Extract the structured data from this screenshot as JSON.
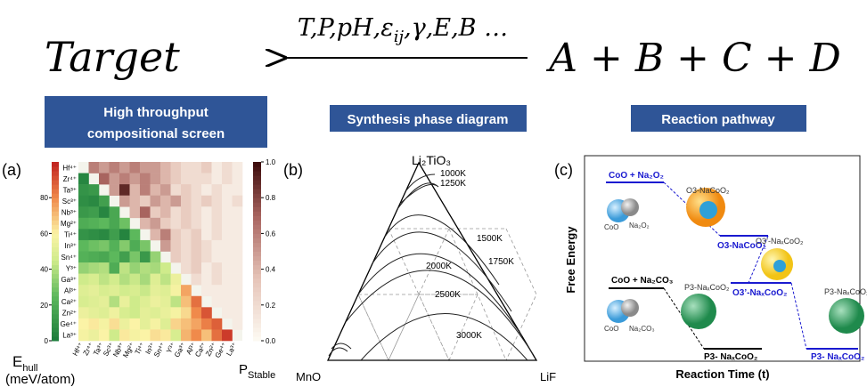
{
  "header": {
    "target": "Target",
    "conditions": {
      "before": "T,P,pH,ε",
      "subscript": "ij",
      "after": ",γ,E,B …"
    },
    "precursors": "A + B + C + D"
  },
  "sections": [
    [
      "High throughput",
      "compositional screen"
    ],
    [
      "Synthesis phase diagram"
    ],
    [
      "Reaction pathway"
    ]
  ],
  "panel_a": {
    "label": "(a)",
    "ions": [
      "Hf⁴⁺",
      "Zr⁴⁺",
      "Ta³⁺",
      "Sc³⁺",
      "Nb³⁺",
      "Mg²⁺",
      "Ti⁴⁺",
      "In³⁺",
      "Sn⁴⁺",
      "Y³⁺",
      "Ga³⁺",
      "Al³⁺",
      "Ca²⁺",
      "Zn²⁺",
      "Ge⁴⁺",
      "La³⁺"
    ],
    "ehull": {
      "symbol": "E",
      "subscript": "hull",
      "unit": "(meV/atom)",
      "lim": [
        0,
        100
      ],
      "ticks": [
        0,
        20,
        40,
        60,
        80
      ],
      "rows": [
        [
          5
        ],
        [
          10,
          12
        ],
        [
          8,
          6,
          15
        ],
        [
          12,
          14,
          5,
          18
        ],
        [
          20,
          22,
          25,
          18,
          28
        ],
        [
          10,
          8,
          6,
          14,
          4,
          25
        ],
        [
          25,
          28,
          30,
          22,
          32,
          20,
          30
        ],
        [
          22,
          20,
          18,
          25,
          15,
          30,
          12,
          35
        ],
        [
          35,
          38,
          40,
          20,
          42,
          35,
          40,
          38,
          45
        ],
        [
          45,
          48,
          42,
          46,
          40,
          44,
          38,
          50,
          42,
          55
        ],
        [
          50,
          52,
          48,
          50,
          46,
          48,
          44,
          52,
          50,
          58,
          75
        ],
        [
          48,
          50,
          52,
          40,
          54,
          45,
          50,
          55,
          52,
          42,
          70,
          85
        ],
        [
          55,
          52,
          50,
          56,
          48,
          45,
          52,
          50,
          54,
          58,
          65,
          80,
          90
        ],
        [
          60,
          62,
          58,
          64,
          55,
          60,
          52,
          58,
          50,
          66,
          70,
          75,
          82,
          88
        ],
        [
          58,
          55,
          60,
          45,
          62,
          58,
          60,
          64,
          62,
          48,
          72,
          80,
          70,
          85,
          95
        ]
      ]
    },
    "pstable": {
      "symbol": "P",
      "subscript": "Stable",
      "lim": [
        0,
        1
      ],
      "ticks": [
        {
          "value": 0,
          "label": "0.0"
        },
        {
          "value": 0.2,
          "label": "0.2"
        },
        {
          "value": 0.4,
          "label": "0.4"
        },
        {
          "value": 0.6,
          "label": "0.6"
        },
        {
          "value": 0.8,
          "label": "0.8"
        },
        {
          "value": 1,
          "label": "1.0"
        }
      ],
      "rows": [
        [
          0.6,
          0.5,
          0.6,
          0.5,
          0.6,
          0.5,
          0.5,
          0.4,
          0.3,
          0.2,
          0.2,
          0.3,
          0.1,
          0.2,
          0.1
        ],
        [
          0.7,
          0.5,
          0.6,
          0.5,
          0.6,
          0.5,
          0.4,
          0.3,
          0.2,
          0.2,
          0.2,
          0.1,
          0.2,
          0.1
        ],
        [
          0.5,
          0.9,
          0.4,
          0.6,
          0.4,
          0.5,
          0.2,
          0.3,
          0.2,
          0.1,
          0.2,
          0.1,
          0.1
        ],
        [
          0.5,
          0.4,
          0.3,
          0.5,
          0.4,
          0.5,
          0.3,
          0.2,
          0.3,
          0.2,
          0.1,
          0.2
        ],
        [
          0.4,
          0.7,
          0.3,
          0.4,
          0.2,
          0.3,
          0.2,
          0.1,
          0.2,
          0.1,
          0.1
        ],
        [
          0.4,
          0.5,
          0.3,
          0.2,
          0.3,
          0.2,
          0.1,
          0.2,
          0.1,
          0.1
        ],
        [
          0.4,
          0.6,
          0.3,
          0.2,
          0.3,
          0.1,
          0.2,
          0.1,
          0.1
        ],
        [
          0.5,
          0.3,
          0.2,
          0.3,
          0.2,
          0.1,
          0.1,
          0.1
        ],
        [
          0.3,
          0.2,
          0.3,
          0.2,
          0.1,
          0.1,
          0.1
        ],
        [
          0.2,
          0.3,
          0.1,
          0.2,
          0.1,
          0.1
        ],
        [
          0.2,
          0.1,
          0.2,
          0.1,
          0.1
        ],
        [
          0.1,
          0.1,
          0.1,
          0.1
        ],
        [
          0.1,
          0.1,
          0.1
        ],
        [
          0.1,
          0.1
        ],
        [
          0.1
        ]
      ]
    }
  },
  "panel_b": {
    "label": "(b)",
    "top": "Li₂TiO₃",
    "left": "MnO",
    "right": "LiF",
    "temperatures": [
      "1000K",
      "1250K",
      "1500K",
      "1750K",
      "2000K",
      "2500K",
      "3000K"
    ]
  },
  "panel_c": {
    "label": "(c)",
    "y_axis": "Free Energy",
    "x_axis": "Reaction Time (t)",
    "states": [
      "CoO + Na₂O₂",
      "O3-NaCoO₂",
      "O3’-NaₓCoO₂",
      "P3- NaₓCoO₂",
      "CoO + Na₂CO₃",
      "P3- NaₓCoO₂"
    ],
    "particles": [
      "O3-NaCoO₂",
      "O3’-NaₓCoO₂",
      "P3-NaₓCoO₂",
      "P3-NaₓCoO₂"
    ],
    "precursors": [
      "CoO",
      "Na₂O₂",
      "CoO",
      "Na₂CO₃"
    ]
  }
}
